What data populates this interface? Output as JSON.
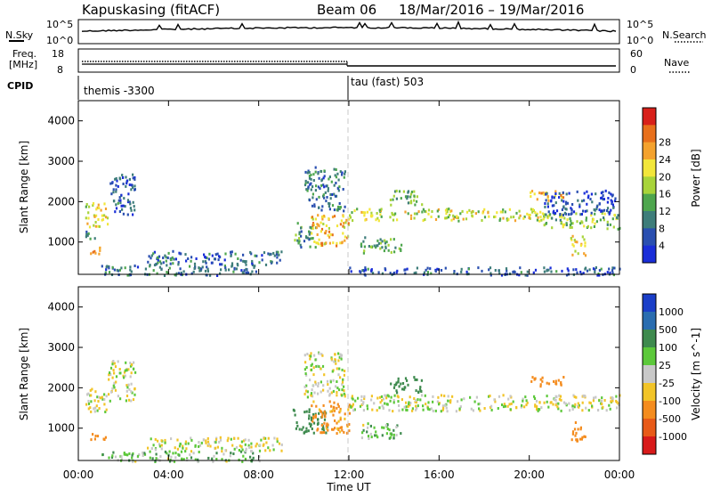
{
  "header": {
    "station": "Kapuskasing (fitACF)",
    "beam": "Beam 06",
    "date_range": "18/Mar/2016 – 19/Mar/2016"
  },
  "noise_panel": {
    "left_label": "N.Sky",
    "right_label": "N.Search",
    "left_ticks": [
      "10^5",
      "10^0"
    ],
    "right_ticks": [
      "10^5",
      "10^0"
    ]
  },
  "freq_panel": {
    "left_label_1": "Freq.",
    "left_label_2": "[MHz]",
    "right_label": "Nave",
    "left_ticks": [
      "18",
      "8"
    ],
    "right_ticks": [
      "60",
      "0"
    ]
  },
  "cpid_panel": {
    "label": "CPID",
    "program_1": "themis -3300",
    "program_2": "tau (fast) 503"
  },
  "time_axis": {
    "label": "Time UT",
    "ticks": [
      "00:00",
      "04:00",
      "08:00",
      "12:00",
      "16:00",
      "20:00",
      "00:00"
    ]
  },
  "chart_data": [
    {
      "type": "heatmap",
      "panel": "power",
      "ylabel": "Slant Range [km]",
      "ylim": [
        200,
        4500
      ],
      "yticks": [
        1000,
        2000,
        3000,
        4000
      ],
      "xlim_hours": [
        0,
        24
      ],
      "colorbar": {
        "label": "Power [dB]",
        "ticks": [
          "4",
          "8",
          "12",
          "16",
          "20",
          "24",
          "28"
        ],
        "colors": [
          "#1a2ed8",
          "#2a4fb0",
          "#3e7d7a",
          "#4ea64e",
          "#a8d43a",
          "#f2e63a",
          "#f4a22e",
          "#e8701c",
          "#d8201a"
        ]
      },
      "scatter_regions": [
        {
          "t0": 0.3,
          "t1": 1.3,
          "r0": 1400,
          "r1": 2000,
          "val": 18
        },
        {
          "t0": 1.3,
          "t1": 2.5,
          "r0": 1700,
          "r1": 2700,
          "val": 6
        },
        {
          "t0": 0.5,
          "t1": 1.2,
          "r0": 700,
          "r1": 900,
          "val": 24
        },
        {
          "t0": 0.3,
          "t1": 1.0,
          "r0": 1100,
          "r1": 1300,
          "val": 8
        },
        {
          "t0": 1.0,
          "t1": 8.0,
          "r0": 200,
          "r1": 450,
          "val": 8
        },
        {
          "t0": 3.0,
          "t1": 9.0,
          "r0": 450,
          "r1": 800,
          "val": 7
        },
        {
          "t0": 9.5,
          "t1": 10.5,
          "r0": 900,
          "r1": 1500,
          "val": 10
        },
        {
          "t0": 10.3,
          "t1": 12.0,
          "r0": 900,
          "r1": 1700,
          "val": 22
        },
        {
          "t0": 10.0,
          "t1": 11.8,
          "r0": 1800,
          "r1": 2900,
          "val": 8
        },
        {
          "t0": 12.0,
          "t1": 20.5,
          "r0": 1550,
          "r1": 1850,
          "val": 17
        },
        {
          "t0": 20.5,
          "t1": 24.0,
          "r0": 1350,
          "r1": 1750,
          "val": 14
        },
        {
          "t0": 13.8,
          "t1": 15.2,
          "r0": 1900,
          "r1": 2300,
          "val": 12
        },
        {
          "t0": 12.5,
          "t1": 14.3,
          "r0": 750,
          "r1": 1150,
          "val": 12
        },
        {
          "t0": 20.0,
          "t1": 21.5,
          "r0": 2050,
          "r1": 2300,
          "val": 22
        },
        {
          "t0": 21.8,
          "t1": 22.5,
          "r0": 700,
          "r1": 1200,
          "val": 20
        },
        {
          "t0": 20.5,
          "t1": 23.8,
          "r0": 1700,
          "r1": 2300,
          "val": 5
        },
        {
          "t0": 12.0,
          "t1": 24.0,
          "r0": 200,
          "r1": 400,
          "val": 6
        }
      ]
    },
    {
      "type": "heatmap",
      "panel": "velocity",
      "ylabel": "Slant Range [km]",
      "ylim": [
        200,
        4500
      ],
      "yticks": [
        1000,
        2000,
        3000,
        4000
      ],
      "xlim_hours": [
        0,
        24
      ],
      "colorbar": {
        "label": "Velocity [m s^-1]",
        "ticks": [
          "1000",
          "500",
          "100",
          "25",
          "-25",
          "-100",
          "-500",
          "-1000"
        ],
        "colors": [
          "#1a3ec8",
          "#2a6db0",
          "#3e8a4e",
          "#5cc83a",
          "#c8c8c8",
          "#f2c428",
          "#f48c1e",
          "#e85a18",
          "#d81a1a"
        ]
      },
      "scatter_regions": [
        {
          "t0": 0.3,
          "t1": 1.3,
          "r0": 1400,
          "r1": 2000,
          "val": 0
        },
        {
          "t0": 1.3,
          "t1": 2.5,
          "r0": 1700,
          "r1": 2700,
          "val": 0
        },
        {
          "t0": 0.5,
          "t1": 1.2,
          "r0": 700,
          "r1": 900,
          "val": -200
        },
        {
          "t0": 1.0,
          "t1": 8.0,
          "r0": 200,
          "r1": 450,
          "val": 60
        },
        {
          "t0": 3.0,
          "t1": 9.0,
          "r0": 450,
          "r1": 800,
          "val": 0
        },
        {
          "t0": 9.5,
          "t1": 11.0,
          "r0": 900,
          "r1": 1500,
          "val": 300
        },
        {
          "t0": 10.3,
          "t1": 12.0,
          "r0": 900,
          "r1": 1700,
          "val": -150
        },
        {
          "t0": 10.0,
          "t1": 11.8,
          "r0": 1800,
          "r1": 2900,
          "val": 0
        },
        {
          "t0": 12.0,
          "t1": 24.0,
          "r0": 1450,
          "r1": 1850,
          "val": 0
        },
        {
          "t0": 13.8,
          "t1": 15.2,
          "r0": 1900,
          "r1": 2300,
          "val": 300
        },
        {
          "t0": 12.5,
          "t1": 14.3,
          "r0": 750,
          "r1": 1150,
          "val": 60
        },
        {
          "t0": 20.0,
          "t1": 21.5,
          "r0": 2050,
          "r1": 2300,
          "val": -200
        },
        {
          "t0": 21.8,
          "t1": 22.5,
          "r0": 700,
          "r1": 1200,
          "val": -300
        }
      ]
    }
  ]
}
